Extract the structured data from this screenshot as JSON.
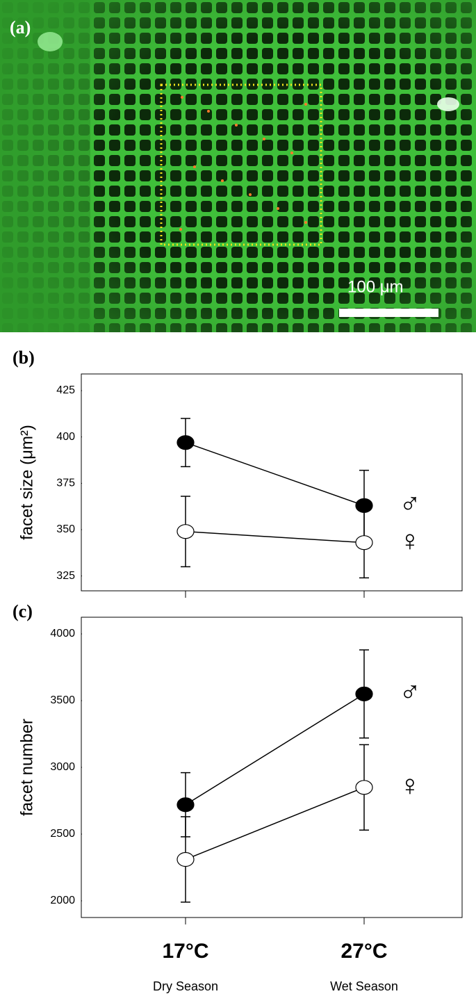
{
  "image": {
    "label": "(a)",
    "scale_bar": "100 μm"
  },
  "chart_data": [
    {
      "type": "errorbar_line",
      "panel_label": "(b)",
      "y_label": "facet size (μm²)",
      "categories": [
        null,
        null
      ],
      "series": [
        {
          "name": "♂",
          "color": "#000000",
          "values": [
            397,
            363
          ],
          "errors": [
            13,
            19
          ]
        },
        {
          "name": "♀",
          "color": "#ffffff",
          "values": [
            349,
            343
          ],
          "errors": [
            19,
            19
          ]
        }
      ],
      "ylim": [
        317,
        434
      ],
      "yticks": [
        325,
        350,
        375,
        400,
        425
      ]
    },
    {
      "type": "errorbar_line",
      "panel_label": "(c)",
      "y_label": "facet number",
      "categories": [
        "17°C",
        "27°C"
      ],
      "category_sublabels": [
        "Dry Season",
        "Wet Season"
      ],
      "series": [
        {
          "name": "♂",
          "color": "#000000",
          "values": [
            2720,
            3550
          ],
          "errors": [
            240,
            330
          ]
        },
        {
          "name": "♀",
          "color": "#ffffff",
          "values": [
            2310,
            2850
          ],
          "errors": [
            320,
            320
          ]
        }
      ],
      "ylim": [
        1875,
        4125
      ],
      "yticks": [
        2000,
        2500,
        3000,
        3500,
        4000
      ]
    }
  ]
}
